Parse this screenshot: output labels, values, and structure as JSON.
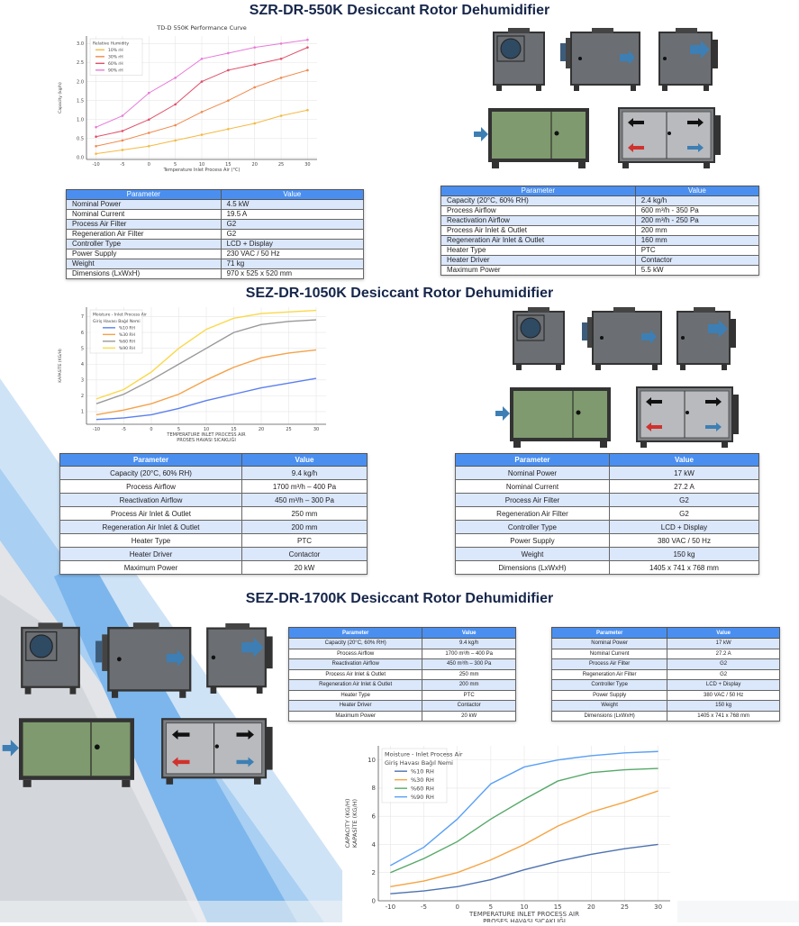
{
  "sections": [
    {
      "title": "SZR-DR-550K Desiccant Rotor Dehumidifier"
    },
    {
      "title": "SEZ-DR-1050K Desiccant Rotor Dehumidifier"
    },
    {
      "title": "SEZ-DR-1700K Desiccant Rotor Dehumidifier"
    }
  ],
  "tables": [
    {
      "header": [
        "Parameter",
        "Value"
      ],
      "rows": [
        [
          "Nominal Power",
          "4.5 kW"
        ],
        [
          "Nominal Current",
          "19.5 A"
        ],
        [
          "Process Air Filter",
          "G2"
        ],
        [
          "Regeneration Air Filter",
          "G2"
        ],
        [
          "Controller Type",
          "LCD + Display"
        ],
        [
          "Power Supply",
          "230 VAC / 50 Hz"
        ],
        [
          "Weight",
          "71 kg"
        ],
        [
          "Dimensions (LxWxH)",
          "970 x 525 x 520 mm"
        ]
      ]
    },
    {
      "header": [
        "Parameter",
        "Value"
      ],
      "rows": [
        [
          "Capacity (20°C, 60% RH)",
          "2.4 kg/h"
        ],
        [
          "Process Airflow",
          "600 m³/h - 350 Pa"
        ],
        [
          "Reactivation Airflow",
          "200 m³/h - 250 Pa"
        ],
        [
          "Process Air Inlet & Outlet",
          "200 mm"
        ],
        [
          "Regeneration Air Inlet & Outlet",
          "160 mm"
        ],
        [
          "Heater Type",
          "PTC"
        ],
        [
          "Heater Driver",
          "Contactor"
        ],
        [
          "Maximum Power",
          "5.5 kW"
        ]
      ]
    },
    {
      "header": [
        "Parameter",
        "Value"
      ],
      "rows": [
        [
          "Capacity (20°C, 60% RH)",
          "9.4 kg/h"
        ],
        [
          "Process Airflow",
          "1700 m³/h – 400 Pa"
        ],
        [
          "Reactivation Airflow",
          "450 m³/h – 300 Pa"
        ],
        [
          "Process Air Inlet & Outlet",
          "250 mm"
        ],
        [
          "Regeneration Air Inlet & Outlet",
          "200 mm"
        ],
        [
          "Heater Type",
          "PTC"
        ],
        [
          "Heater Driver",
          "Contactor"
        ],
        [
          "Maximum Power",
          "20 kW"
        ]
      ]
    },
    {
      "header": [
        "Parameter",
        "Value"
      ],
      "rows": [
        [
          "Nominal Power",
          "17 kW"
        ],
        [
          "Nominal Current",
          "27.2 A"
        ],
        [
          "Process Air Filter",
          "G2"
        ],
        [
          "Regeneration Air Filter",
          "G2"
        ],
        [
          "Controller Type",
          "LCD + Display"
        ],
        [
          "Power Supply",
          "380 VAC / 50 Hz"
        ],
        [
          "Weight",
          "150 kg"
        ],
        [
          "Dimensions (LxWxH)",
          "1405 x 741 x 768 mm"
        ]
      ]
    },
    {
      "header": [
        "Parameter",
        "Value"
      ],
      "rows": [
        [
          "Capacity (20°C, 60% RH)",
          "9.4 kg/h"
        ],
        [
          "Process Airflow",
          "1700 m³/h – 400 Pa"
        ],
        [
          "Reactivation Airflow",
          "450 m³/h – 300 Pa"
        ],
        [
          "Process Air Inlet & Outlet",
          "250 mm"
        ],
        [
          "Regeneration Air Inlet & Outlet",
          "200 mm"
        ],
        [
          "Heater Type",
          "PTC"
        ],
        [
          "Heater Driver",
          "Contactor"
        ],
        [
          "Maximum Power",
          "20 kW"
        ]
      ]
    },
    {
      "header": [
        "Parameter",
        "Value"
      ],
      "rows": [
        [
          "Nominal Power",
          "17 kW"
        ],
        [
          "Nominal Current",
          "27.2 A"
        ],
        [
          "Process Air Filter",
          "G2"
        ],
        [
          "Regeneration Air Filter",
          "G2"
        ],
        [
          "Controller Type",
          "LCD + Display"
        ],
        [
          "Power Supply",
          "380 VAC / 50 Hz"
        ],
        [
          "Weight",
          "150 kg"
        ],
        [
          "Dimensions (LxWxH)",
          "1405 x 741 x 768 mm"
        ]
      ]
    }
  ],
  "chart_data": [
    {
      "type": "line",
      "title": "TD-D 550K Performance Curve",
      "xlabel": [
        "Temperature Inlet Process Air (°C)"
      ],
      "ylabel": [
        "Capacity (kg/h)"
      ],
      "legend_title": [
        "Relative Humidity"
      ],
      "legend": "top-left",
      "markers": true,
      "grid": true,
      "x": [
        -10,
        -5,
        0,
        5,
        10,
        15,
        20,
        25,
        30
      ],
      "xticks": [
        -10,
        -5,
        0,
        5,
        10,
        15,
        20,
        25,
        30
      ],
      "yticks": [
        0.0,
        0.5,
        1.0,
        1.5,
        2.0,
        2.5,
        3.0
      ],
      "ytick_labels": [
        "0.0",
        "0.5",
        "1.0",
        "1.5",
        "2.0",
        "2.5",
        "3.0"
      ],
      "ylim": [
        -0.05,
        3.2
      ],
      "series": [
        {
          "name": "10% rH",
          "color": "#f5b942",
          "values": [
            0.1,
            0.2,
            0.3,
            0.45,
            0.6,
            0.75,
            0.9,
            1.1,
            1.25
          ]
        },
        {
          "name": "30% rH",
          "color": "#ef8a4c",
          "values": [
            0.3,
            0.45,
            0.65,
            0.85,
            1.2,
            1.5,
            1.85,
            2.1,
            2.3
          ]
        },
        {
          "name": "60% rH",
          "color": "#e0506a",
          "values": [
            0.55,
            0.7,
            1.0,
            1.4,
            2.0,
            2.3,
            2.45,
            2.6,
            2.9
          ]
        },
        {
          "name": "90% rH",
          "color": "#e77ad8",
          "values": [
            0.8,
            1.1,
            1.7,
            2.1,
            2.6,
            2.75,
            2.9,
            3.0,
            3.1
          ]
        }
      ]
    },
    {
      "type": "line",
      "title": "",
      "xlabel": [
        "TEMPERATURE INLET PROCESS AIR",
        "PROSES HAVASI SICAKLIĞI"
      ],
      "ylabel": [
        "KAPASİTE (KG/H)"
      ],
      "legend_title": [
        "Moisture - Inlet Process Air",
        "Giriş Havası Bağıl Nemi"
      ],
      "legend": "top-left",
      "markers": false,
      "grid": true,
      "x": [
        -10,
        -5,
        0,
        5,
        10,
        15,
        20,
        25,
        30
      ],
      "xticks": [
        -10,
        -5,
        0,
        5,
        10,
        15,
        20,
        25,
        30
      ],
      "yticks": [
        1,
        2,
        3,
        4,
        5,
        6,
        7
      ],
      "ytick_labels": [
        "1",
        "2",
        "3",
        "4",
        "5",
        "6",
        "7"
      ],
      "ylim": [
        0.2,
        7.6
      ],
      "series": [
        {
          "name": "%10 RH",
          "color": "#5b7ff0",
          "values": [
            0.5,
            0.6,
            0.8,
            1.2,
            1.7,
            2.1,
            2.5,
            2.8,
            3.1
          ]
        },
        {
          "name": "%30 RH",
          "color": "#f5a24a",
          "values": [
            0.8,
            1.1,
            1.5,
            2.1,
            3.0,
            3.8,
            4.4,
            4.7,
            4.9
          ]
        },
        {
          "name": "%60 RH",
          "color": "#999999",
          "values": [
            1.5,
            2.1,
            3.0,
            4.0,
            5.0,
            6.0,
            6.5,
            6.7,
            6.8
          ]
        },
        {
          "name": "%90 RH",
          "color": "#fbd84a",
          "values": [
            1.8,
            2.4,
            3.5,
            5.0,
            6.2,
            6.9,
            7.2,
            7.3,
            7.4
          ]
        }
      ]
    },
    {
      "type": "line",
      "title": "",
      "xlabel": [
        "TEMPERATURE INLET PROCESS AIR",
        "PROSES HAVASI SICAKLIĞI"
      ],
      "ylabel": [
        "CAPACITY (KG/H)",
        "KAPASİTE (KG/H)"
      ],
      "legend_title": [
        "Moisture - Inlet Process Air",
        "Giriş Havası Bağıl Nemi"
      ],
      "legend": "top-left",
      "markers": false,
      "grid": true,
      "x": [
        -10,
        -5,
        0,
        5,
        10,
        15,
        20,
        25,
        30
      ],
      "xticks": [
        -10,
        -5,
        0,
        5,
        10,
        15,
        20,
        25,
        30
      ],
      "yticks": [
        0,
        2,
        4,
        6,
        8,
        10
      ],
      "ytick_labels": [
        "0",
        "2",
        "4",
        "6",
        "8",
        "10"
      ],
      "ylim": [
        0,
        11
      ],
      "series": [
        {
          "name": "%10 RH",
          "color": "#4c72b0",
          "values": [
            0.5,
            0.7,
            1.0,
            1.5,
            2.2,
            2.8,
            3.3,
            3.7,
            4.0
          ]
        },
        {
          "name": "%30 RH",
          "color": "#f5a442",
          "values": [
            1.0,
            1.4,
            2.0,
            2.9,
            4.0,
            5.3,
            6.3,
            7.0,
            7.8
          ]
        },
        {
          "name": "%60 RH",
          "color": "#55a868",
          "values": [
            2.0,
            3.0,
            4.2,
            5.8,
            7.2,
            8.5,
            9.1,
            9.3,
            9.4
          ]
        },
        {
          "name": "%90 RH",
          "color": "#5aa0f5",
          "values": [
            2.5,
            3.8,
            5.8,
            8.3,
            9.5,
            10.0,
            10.3,
            10.5,
            10.6
          ]
        }
      ]
    }
  ],
  "colors": {
    "title": "#16264a",
    "table_header": "#4a8ff0",
    "row_alt": "#dbe7fb",
    "unit_body": "#6b6e72",
    "unit_panel_green": "#7f9a6e"
  }
}
